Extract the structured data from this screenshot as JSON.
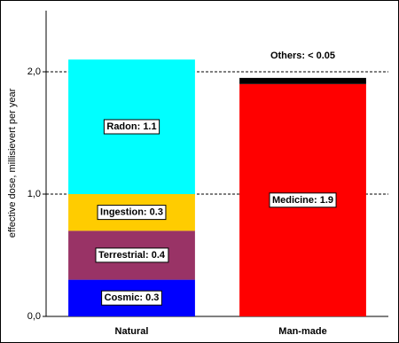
{
  "chart_data": {
    "type": "stacked_bar",
    "y_label": "effective dose, millisievert per year",
    "categories": [
      "Natural",
      "Man-made"
    ],
    "series": [
      {
        "color": "#0000ff",
        "values": [
          0.3,
          null
        ],
        "value_labels": [
          "Cosmic: 0.3",
          null
        ]
      },
      {
        "color": "#993366",
        "values": [
          0.4,
          null
        ],
        "value_labels": [
          "Terrestrial: 0.4",
          null
        ]
      },
      {
        "color": "#ffcc00",
        "values": [
          0.3,
          null
        ],
        "value_labels": [
          "Ingestion: 0.3",
          null
        ]
      },
      {
        "color": "#00ffff",
        "values": [
          1.1,
          null
        ],
        "value_labels": [
          "Radon: 1.1",
          null
        ]
      },
      {
        "color": "#ff0000",
        "values": [
          null,
          1.9
        ],
        "value_labels": [
          null,
          "Medicine: 1.9"
        ]
      },
      {
        "color": "#000000",
        "values": [
          null,
          0.05
        ],
        "value_labels": [
          null,
          "Others: < 0.05"
        ]
      }
    ],
    "ylim": [
      0,
      2.5
    ],
    "yticks": [
      {
        "value": 0,
        "label": "0,0"
      },
      {
        "value": 1,
        "label": "1,0"
      },
      {
        "value": 2,
        "label": "2,0"
      }
    ],
    "grid": true
  }
}
